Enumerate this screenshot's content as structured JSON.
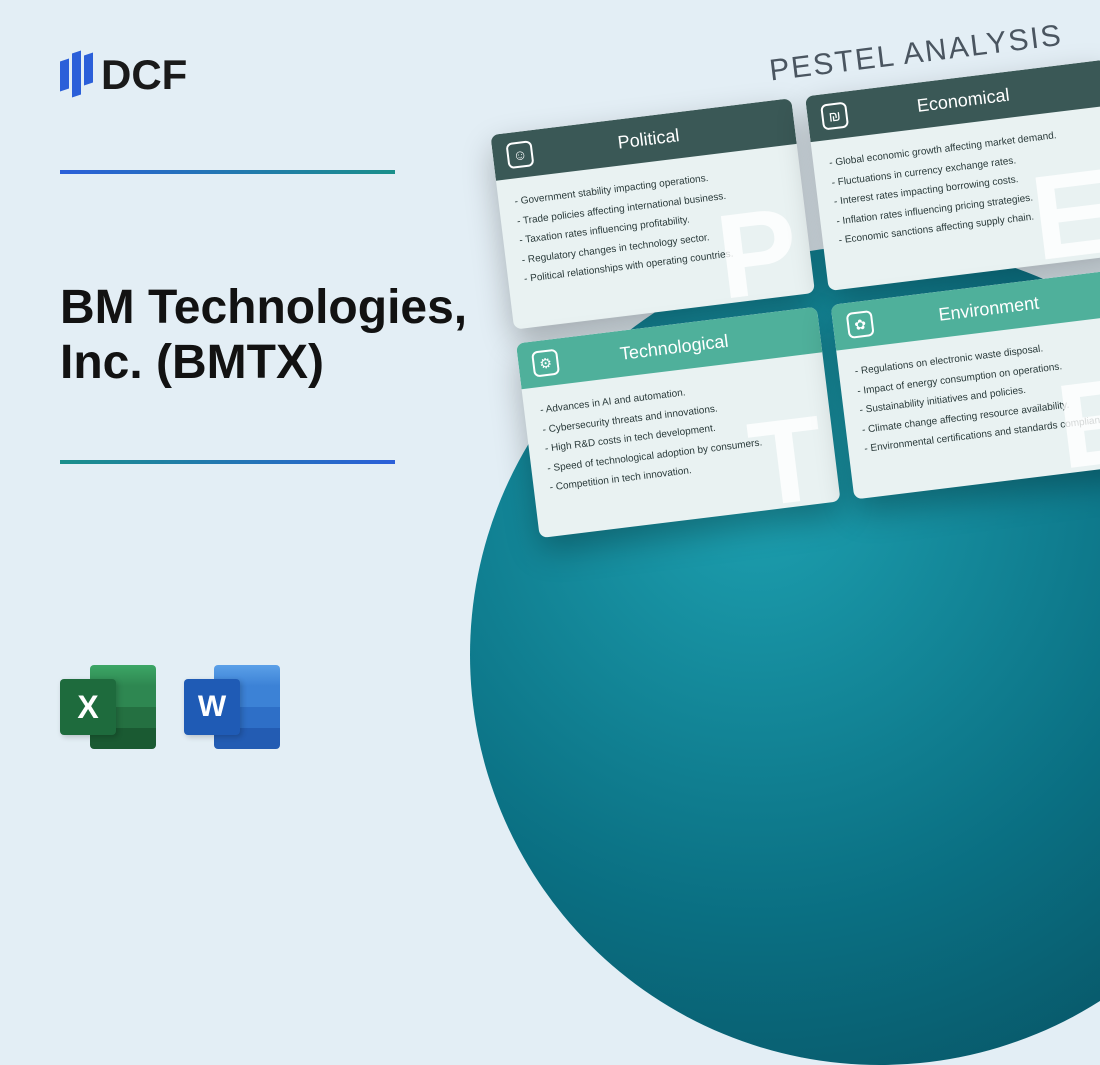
{
  "brand": {
    "name": "DCF"
  },
  "title": "BM Technologies, Inc. (BMTX)",
  "icons": {
    "excel_letter": "X",
    "word_letter": "W"
  },
  "analysis": {
    "heading": "PESTEL ANALYSIS",
    "cards": [
      {
        "title": "Political",
        "letter": "P",
        "header_variant": "dark",
        "icon_glyph": "☺",
        "items": [
          "Government stability impacting operations.",
          "Trade policies affecting international business.",
          "Taxation rates influencing profitability.",
          "Regulatory changes in technology sector.",
          "Political relationships with operating countries."
        ]
      },
      {
        "title": "Economical",
        "letter": "E",
        "header_variant": "dark",
        "icon_glyph": "₪",
        "items": [
          "Global economic growth affecting market demand.",
          "Fluctuations in currency exchange rates.",
          "Interest rates impacting borrowing costs.",
          "Inflation rates influencing pricing strategies.",
          "Economic sanctions affecting supply chain."
        ]
      },
      {
        "title": "Technological",
        "letter": "T",
        "header_variant": "light",
        "icon_glyph": "⚙",
        "items": [
          "Advances in AI and automation.",
          "Cybersecurity threats and innovations.",
          "High R&D costs in tech development.",
          "Speed of technological adoption by consumers.",
          "Competition in tech innovation."
        ]
      },
      {
        "title": "Environment",
        "letter": "E",
        "header_variant": "light",
        "icon_glyph": "✿",
        "items": [
          "Regulations on electronic waste disposal.",
          "Impact of energy consumption on operations.",
          "Sustainability initiatives and policies.",
          "Climate change affecting resource availability.",
          "Environmental certifications and standards compliance."
        ]
      }
    ]
  },
  "colors": {
    "page_bg": "#e3eef5",
    "gradient_a": "#2b5fd9",
    "gradient_b": "#1a8f8a",
    "circle_inner": "#1da0b0",
    "circle_outer": "#074a5a",
    "card_header_dark": "#3a5856",
    "card_header_light": "#4fb09b",
    "card_bg": "#e9f2f2"
  }
}
